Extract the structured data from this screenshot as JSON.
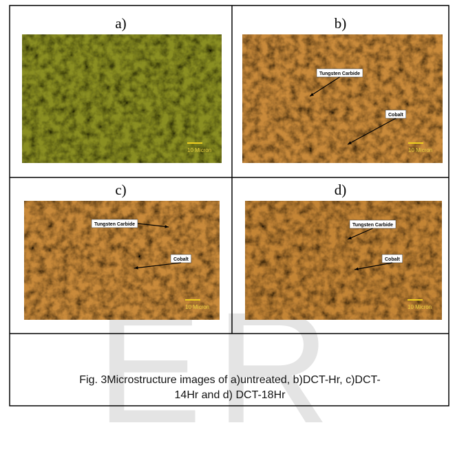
{
  "figure": {
    "panels": [
      {
        "label": "a)",
        "scale_text": "10 Micron"
      },
      {
        "label": "b)",
        "scale_text": "10 Micron",
        "annotations": [
          "Tungsten Carbide",
          "Cobalt"
        ]
      },
      {
        "label": "c)",
        "scale_text": "10 Micron",
        "annotations": [
          "Tungsten Carbide",
          "Cobalt"
        ]
      },
      {
        "label": "d)",
        "scale_text": "10 Micron",
        "annotations": [
          "Tungsten Carbide",
          "Cobalt"
        ]
      }
    ],
    "caption": [
      "Fig. 3Microstructure images of a)untreated, b)DCT-Hr, c)DCT-",
      "14Hr and d) DCT-18Hr"
    ],
    "watermark": "ER"
  }
}
